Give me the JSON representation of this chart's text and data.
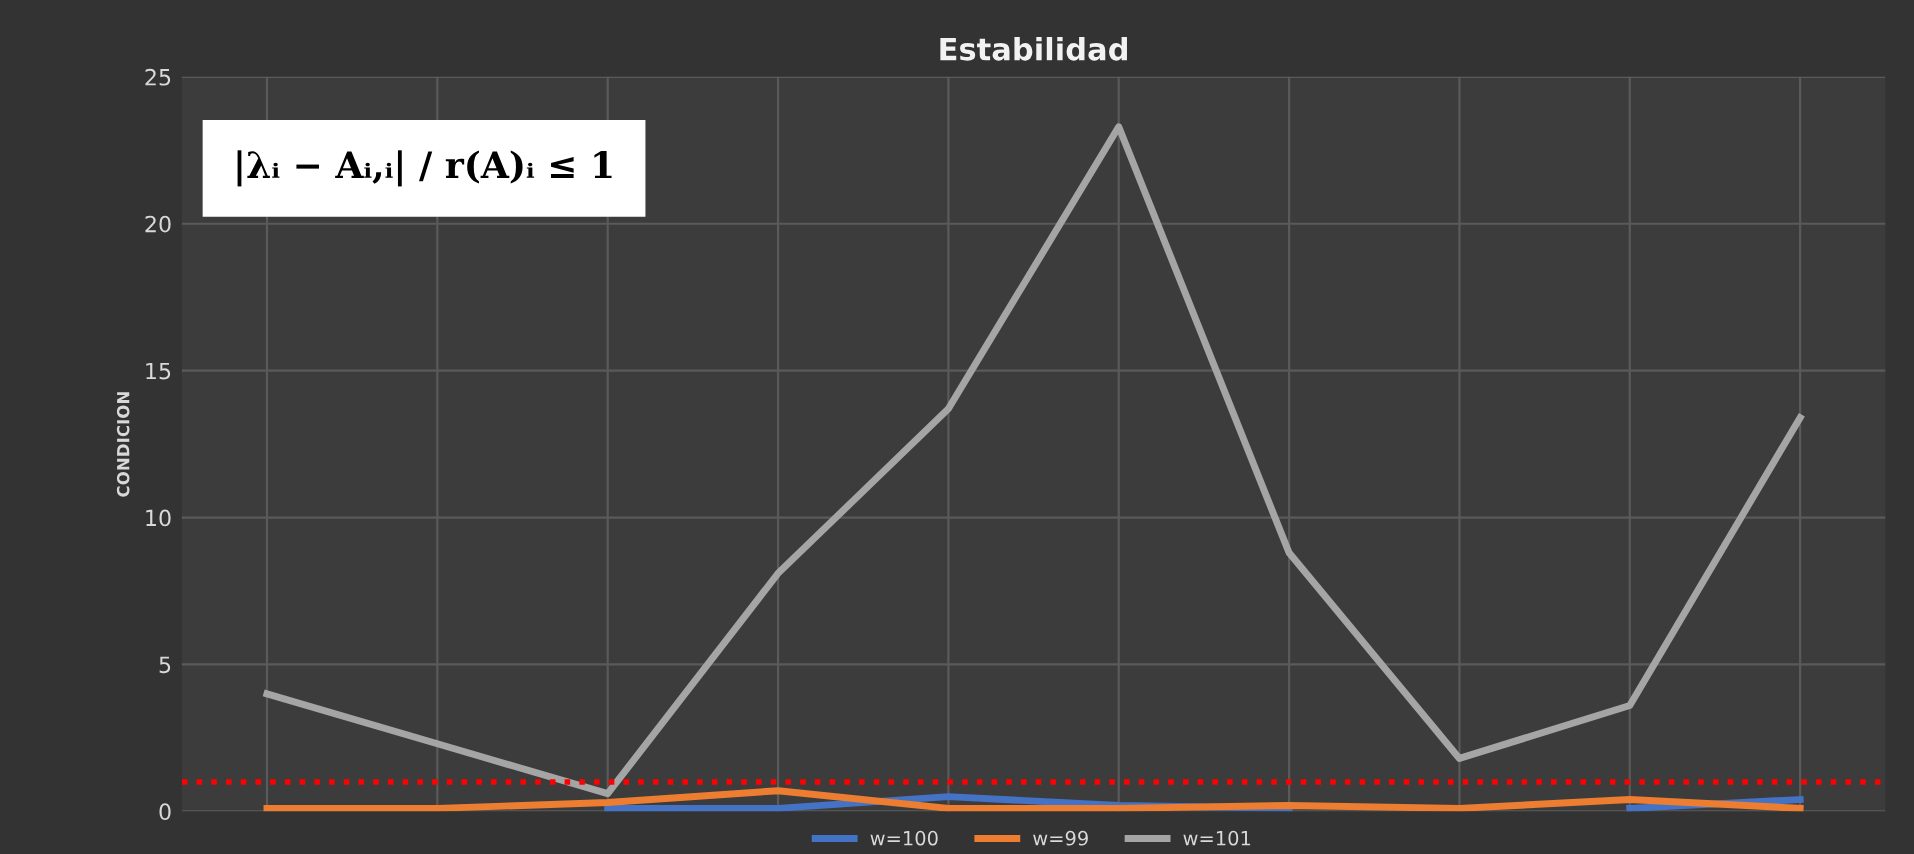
{
  "chart_data": {
    "type": "line",
    "title": "Estabilidad",
    "ylabel": "CONDICION",
    "categories": [
      null,
      null,
      null,
      null,
      null,
      null,
      null,
      null,
      null,
      null
    ],
    "series": [
      {
        "name": "w=100",
        "color": "#4472c4",
        "values": [
          null,
          null,
          0.1,
          0.1,
          0.5,
          0.2,
          0.1,
          null,
          0.1,
          0.4
        ]
      },
      {
        "name": "w=99",
        "color": "#ed7d31",
        "values": [
          0.1,
          0.1,
          0.3,
          0.7,
          0.1,
          0.1,
          0.2,
          0.1,
          0.4,
          0.1
        ]
      },
      {
        "name": "w=101",
        "color": "#a5a5a5",
        "values": [
          4.0,
          2.3,
          0.6,
          8.1,
          13.7,
          23.3,
          8.8,
          1.8,
          3.6,
          13.4
        ]
      }
    ],
    "ylim": [
      0,
      25
    ],
    "yticks": [
      0,
      5,
      10,
      15,
      20,
      25
    ],
    "grid": true,
    "legend": "bottom",
    "tick_labels": "y",
    "line_style": "solid",
    "marker": "none",
    "ref_lines": [
      {
        "axis": "y",
        "value": 1,
        "color": "#ff0000",
        "line_style": "dotted"
      }
    ],
    "annotations": [
      "|λᵢ − Aᵢ,ᵢ| / r(A)ᵢ ≤ 1"
    ]
  }
}
